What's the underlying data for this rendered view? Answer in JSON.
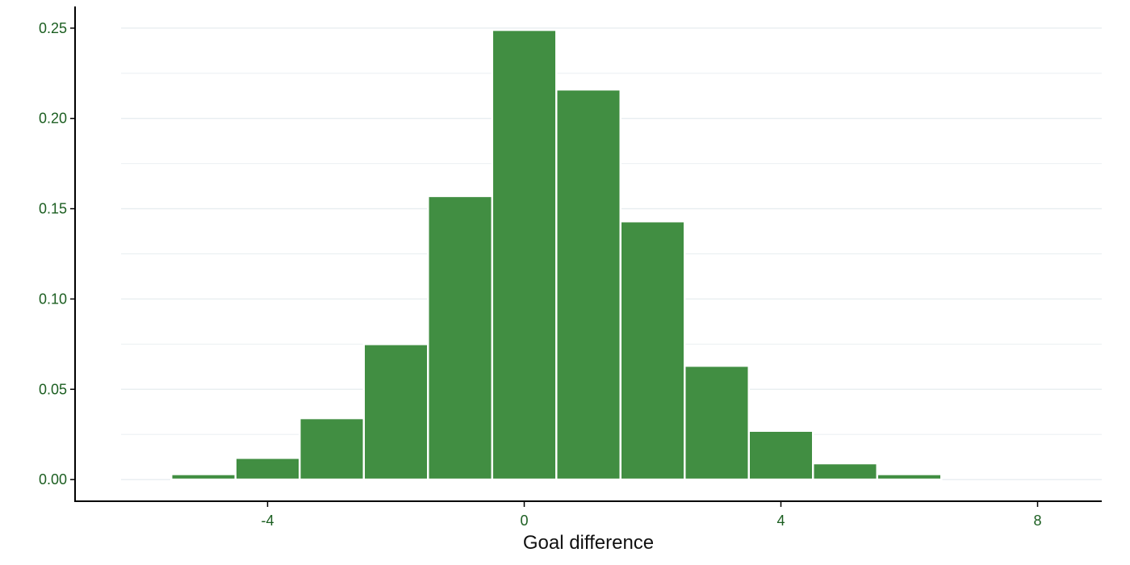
{
  "chart_data": {
    "type": "bar",
    "title": "",
    "xlabel": "Goal difference",
    "ylabel": "",
    "x": [
      -5,
      -4,
      -3,
      -2,
      -1,
      0,
      1,
      2,
      3,
      4,
      5,
      6
    ],
    "values": [
      0.003,
      0.012,
      0.034,
      0.075,
      0.157,
      0.249,
      0.216,
      0.143,
      0.063,
      0.027,
      0.009,
      0.003
    ],
    "bin_width": 1,
    "xlim": [
      -7,
      9
    ],
    "ylim": [
      -0.012,
      0.262
    ],
    "xticks": [
      -4,
      0,
      4,
      8
    ],
    "xtick_labels": [
      "-4",
      "0",
      "4",
      "8"
    ],
    "yticks": [
      0.0,
      0.05,
      0.1,
      0.15,
      0.2,
      0.25
    ],
    "ytick_labels": [
      "0.00",
      "0.05",
      "0.10",
      "0.15",
      "0.20",
      "0.25"
    ],
    "grid": "horizontal",
    "legend": "none",
    "colors": {
      "bar_fill": "#418e42",
      "bar_edge": "#ffffff",
      "tick_text": "#1b5e20",
      "grid": "#e8eef0",
      "axis": "#000000"
    }
  }
}
